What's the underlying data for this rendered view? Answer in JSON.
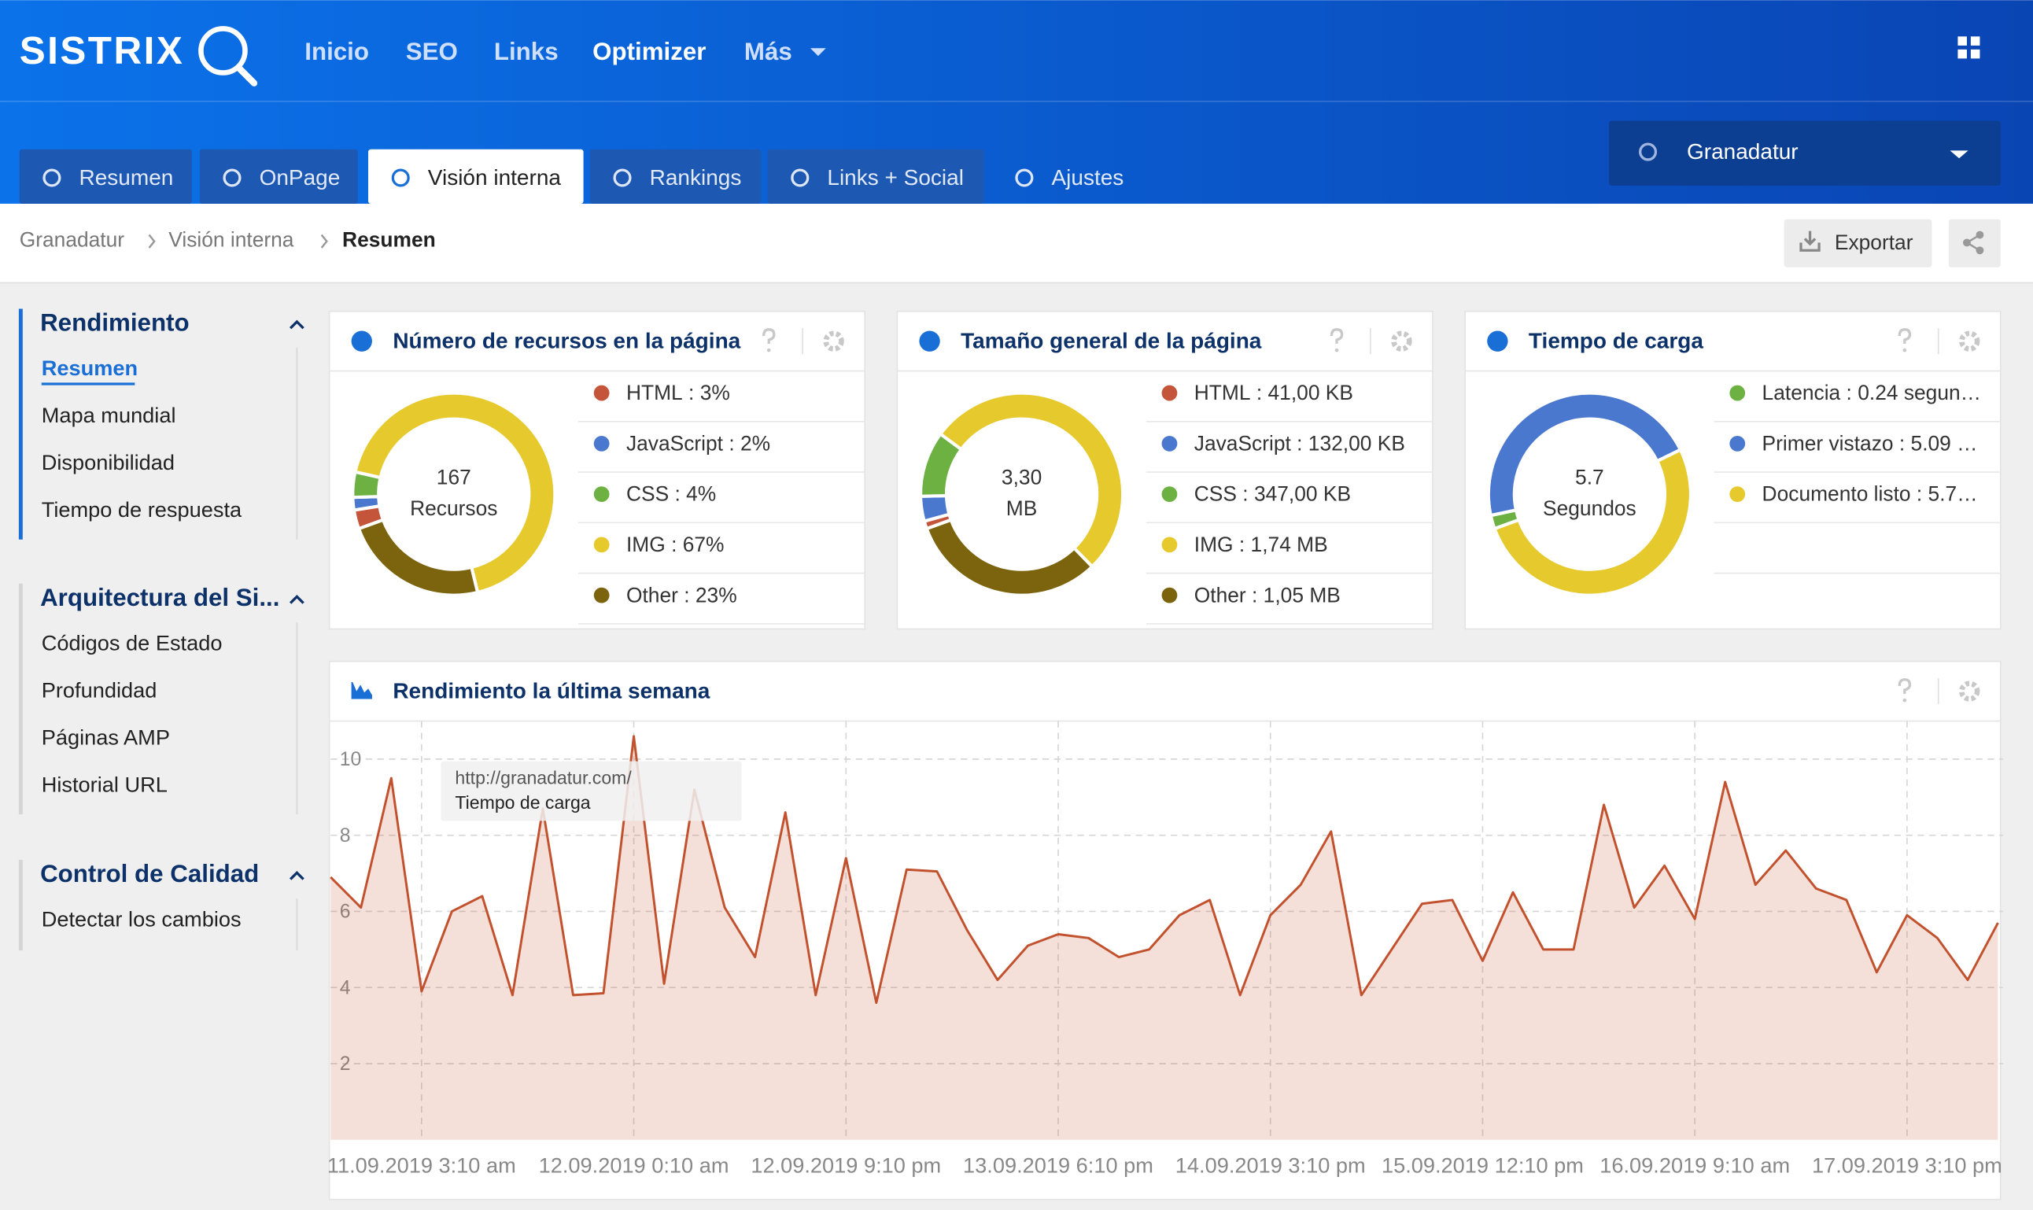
{
  "header": {
    "logo": "SISTRIX",
    "nav": [
      "Inicio",
      "SEO",
      "Links",
      "Optimizer",
      "Más"
    ],
    "tabs": [
      "Resumen",
      "OnPage",
      "Visión interna",
      "Rankings",
      "Links + Social",
      "Ajustes"
    ],
    "project": "Granadatur"
  },
  "breadcrumb": [
    "Granadatur",
    "Visión interna",
    "Resumen"
  ],
  "actions": {
    "export": "Exportar"
  },
  "sidebar": [
    {
      "title": "Rendimiento",
      "items": [
        "Resumen",
        "Mapa mundial",
        "Disponibilidad",
        "Tiempo de respuesta"
      ]
    },
    {
      "title": "Arquitectura del Si...",
      "items": [
        "Códigos de Estado",
        "Profundidad",
        "Páginas AMP",
        "Historial URL"
      ]
    },
    {
      "title": "Control de Calidad",
      "items": [
        "Detectar los cambios"
      ]
    }
  ],
  "chart_data": [
    {
      "type": "pie",
      "title": "Número de recursos en la página",
      "center_value": 167,
      "center_label": "Recursos",
      "separator": " : ",
      "categories": [
        "HTML",
        "JavaScript",
        "CSS",
        "IMG",
        "Other"
      ],
      "values": [
        3,
        2,
        4,
        67,
        23
      ],
      "value_labels": [
        "3%",
        "2%",
        "4%",
        "67%",
        "23%"
      ],
      "colors": [
        "#c4553a",
        "#4a78cf",
        "#6cb142",
        "#e6c92c",
        "#7c630e"
      ]
    },
    {
      "type": "pie",
      "title": "Tamaño general de la página",
      "center_value": "3,30",
      "center_label": "MB",
      "separator": " : ",
      "categories": [
        "HTML",
        "JavaScript",
        "CSS",
        "IMG",
        "Other"
      ],
      "values": [
        41,
        132,
        347,
        1740,
        1050
      ],
      "value_labels": [
        "41,00 KB",
        "132,00 KB",
        "347,00 KB",
        "1,74 MB",
        "1,05 MB"
      ],
      "colors": [
        "#c4553a",
        "#4a78cf",
        "#6cb142",
        "#e6c92c",
        "#7c630e"
      ]
    },
    {
      "type": "pie",
      "title": "Tiempo de carga",
      "center_value": 5.7,
      "center_label": "Segundos",
      "separator": " : ",
      "categories": [
        "Latencia",
        "Primer vistazo",
        "Documento listo"
      ],
      "values": [
        0.24,
        5.09,
        5.7
      ],
      "value_labels": [
        "0.24 segun…",
        "5.09 …",
        "5.7…"
      ],
      "colors": [
        "#6cb142",
        "#4a78cf",
        "#e6c92c"
      ]
    },
    {
      "type": "line",
      "title": "Rendimiento la última semana",
      "categories": [
        null,
        null,
        null,
        "11.09.2019 3:10 am",
        null,
        null,
        null,
        null,
        null,
        null,
        "12.09.2019 0:10 am",
        null,
        null,
        null,
        null,
        null,
        null,
        "12.09.2019 9:10 pm",
        null,
        null,
        null,
        null,
        null,
        null,
        "13.09.2019 6:10 pm",
        null,
        null,
        null,
        null,
        null,
        null,
        "14.09.2019 3:10 pm",
        null,
        null,
        null,
        null,
        null,
        null,
        "15.09.2019 12:10 pm",
        null,
        null,
        null,
        null,
        null,
        null,
        "16.09.2019 9:10 am",
        null,
        null,
        null,
        null,
        null,
        null,
        "17.09.2019 3:10 pm",
        null,
        null,
        null
      ],
      "series": [
        {
          "name": "Tiempo de carga",
          "color": "#c2512e",
          "values": [
            6.9,
            6.1,
            9.5,
            3.9,
            6.0,
            6.4,
            3.8,
            8.7,
            3.8,
            3.85,
            10.6,
            4.1,
            9.2,
            6.1,
            4.8,
            8.6,
            3.8,
            7.4,
            3.6,
            7.1,
            7.05,
            5.5,
            4.2,
            5.1,
            5.4,
            5.3,
            4.8,
            5.0,
            5.9,
            6.3,
            3.8,
            5.9,
            6.7,
            8.1,
            3.8,
            5.0,
            6.2,
            6.3,
            4.7,
            6.5,
            5.0,
            5.0,
            8.8,
            6.1,
            7.2,
            5.8,
            9.4,
            6.7,
            7.6,
            6.6,
            6.3,
            4.4,
            5.9,
            5.3,
            4.2,
            5.7
          ]
        }
      ],
      "ylim": [
        0,
        11
      ],
      "yticks": [
        2,
        4,
        6,
        8,
        10
      ],
      "grid": true,
      "tooltip_url": "http://granadatur.com/"
    }
  ]
}
